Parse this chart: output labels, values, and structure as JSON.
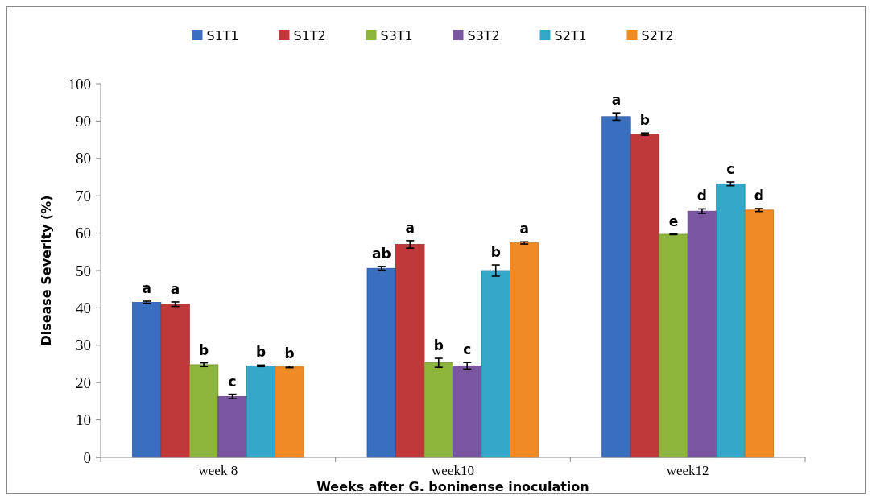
{
  "chart_data": {
    "type": "bar",
    "xlabel": "Weeks after G. boninense inoculation",
    "ylabel": "Disease Severity (%)",
    "categories": [
      "week 8",
      "week10",
      "week12"
    ],
    "ylim": [
      0,
      100
    ],
    "yticks": [
      0,
      10,
      20,
      30,
      40,
      50,
      60,
      70,
      80,
      90,
      100
    ],
    "grid": false,
    "legend": "top",
    "series": [
      {
        "name": "S1T1",
        "color": "#3a6fc0",
        "values": [
          41.5,
          50.6,
          91.2
        ],
        "errors": [
          0.3,
          0.5,
          1
        ],
        "value_labels": [
          "a",
          "ab",
          "a"
        ]
      },
      {
        "name": "S1T2",
        "color": "#c0393a",
        "values": [
          41,
          57,
          86.5
        ],
        "errors": [
          0.6,
          1,
          0.3
        ],
        "value_labels": [
          "a",
          "a",
          "b"
        ]
      },
      {
        "name": "S3T1",
        "color": "#8db53c",
        "values": [
          24.8,
          25.3,
          59.7
        ],
        "errors": [
          0.5,
          1.2,
          0.1
        ],
        "value_labels": [
          "b",
          "b",
          "e"
        ]
      },
      {
        "name": "S3T2",
        "color": "#7a55a0",
        "values": [
          16.3,
          24.5,
          65.9
        ],
        "errors": [
          0.6,
          0.9,
          0.6
        ],
        "value_labels": [
          "c",
          "c",
          "d"
        ]
      },
      {
        "name": "S2T1",
        "color": "#33a8c8",
        "values": [
          24.5,
          50,
          73.2
        ],
        "errors": [
          0.2,
          1.5,
          0.5
        ],
        "value_labels": [
          "b",
          "b",
          "c"
        ]
      },
      {
        "name": "S2T2",
        "color": "#f08a24",
        "values": [
          24.2,
          57.4,
          66.2
        ],
        "errors": [
          0.2,
          0.3,
          0.4
        ],
        "value_labels": [
          "b",
          "a",
          "d"
        ]
      }
    ]
  }
}
